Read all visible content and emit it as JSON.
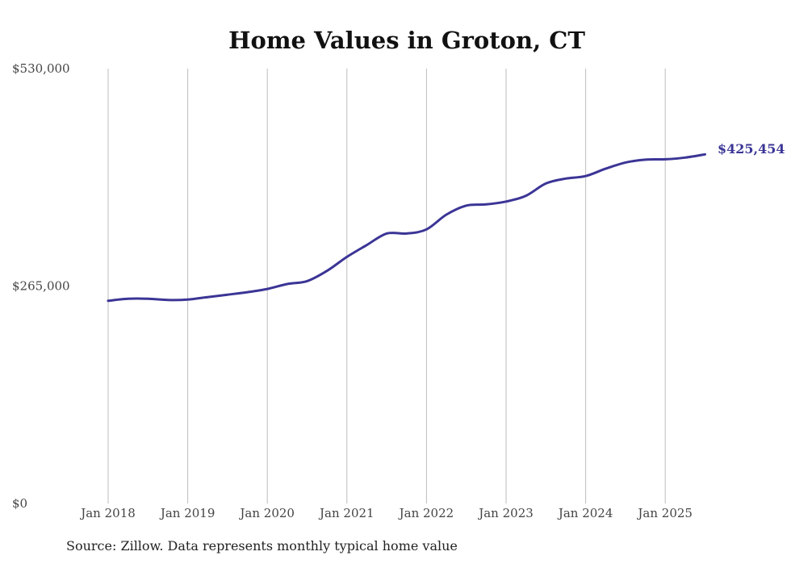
{
  "source_note": "Source: Zillow. Data represents monthly typical home value",
  "colors": {
    "line": "#3b3596",
    "grid": "#bdbdbd",
    "text": "#444444"
  },
  "chart_data": {
    "type": "line",
    "title": "Home Values in Groton, CT",
    "xlabel": "",
    "ylabel": "",
    "ylim": [
      0,
      530000
    ],
    "y_ticks": [
      {
        "value": 0,
        "label": "$0"
      },
      {
        "value": 265000,
        "label": "$265,000"
      },
      {
        "value": 530000,
        "label": "$530,000"
      }
    ],
    "x_ticks": [
      {
        "date": "2018-01",
        "label": "Jan 2018"
      },
      {
        "date": "2019-01",
        "label": "Jan 2019"
      },
      {
        "date": "2020-01",
        "label": "Jan 2020"
      },
      {
        "date": "2021-01",
        "label": "Jan 2021"
      },
      {
        "date": "2022-01",
        "label": "Jan 2022"
      },
      {
        "date": "2023-01",
        "label": "Jan 2023"
      },
      {
        "date": "2024-01",
        "label": "Jan 2024"
      },
      {
        "date": "2025-01",
        "label": "Jan 2025"
      }
    ],
    "grid": {
      "vertical": true,
      "horizontal": false
    },
    "end_label": "$425,454",
    "series": [
      {
        "color": "#3b3596",
        "points": [
          {
            "x": "2018-01",
            "y": 247000
          },
          {
            "x": "2018-04",
            "y": 249500
          },
          {
            "x": "2018-07",
            "y": 249500
          },
          {
            "x": "2018-10",
            "y": 248000
          },
          {
            "x": "2019-01",
            "y": 248500
          },
          {
            "x": "2019-04",
            "y": 251500
          },
          {
            "x": "2019-07",
            "y": 254500
          },
          {
            "x": "2019-10",
            "y": 257500
          },
          {
            "x": "2020-01",
            "y": 261500
          },
          {
            "x": "2020-04",
            "y": 267500
          },
          {
            "x": "2020-07",
            "y": 271000
          },
          {
            "x": "2020-10",
            "y": 283500
          },
          {
            "x": "2021-01",
            "y": 300500
          },
          {
            "x": "2021-04",
            "y": 315000
          },
          {
            "x": "2021-07",
            "y": 329000
          },
          {
            "x": "2021-10",
            "y": 329000
          },
          {
            "x": "2022-01",
            "y": 334000
          },
          {
            "x": "2022-04",
            "y": 352000
          },
          {
            "x": "2022-07",
            "y": 363000
          },
          {
            "x": "2022-10",
            "y": 364500
          },
          {
            "x": "2023-01",
            "y": 368000
          },
          {
            "x": "2023-04",
            "y": 375000
          },
          {
            "x": "2023-07",
            "y": 390000
          },
          {
            "x": "2023-10",
            "y": 396000
          },
          {
            "x": "2024-01",
            "y": 399000
          },
          {
            "x": "2024-04",
            "y": 408000
          },
          {
            "x": "2024-07",
            "y": 415500
          },
          {
            "x": "2024-10",
            "y": 419000
          },
          {
            "x": "2025-01",
            "y": 419500
          },
          {
            "x": "2025-04",
            "y": 421500
          },
          {
            "x": "2025-07",
            "y": 425454
          }
        ]
      }
    ]
  }
}
